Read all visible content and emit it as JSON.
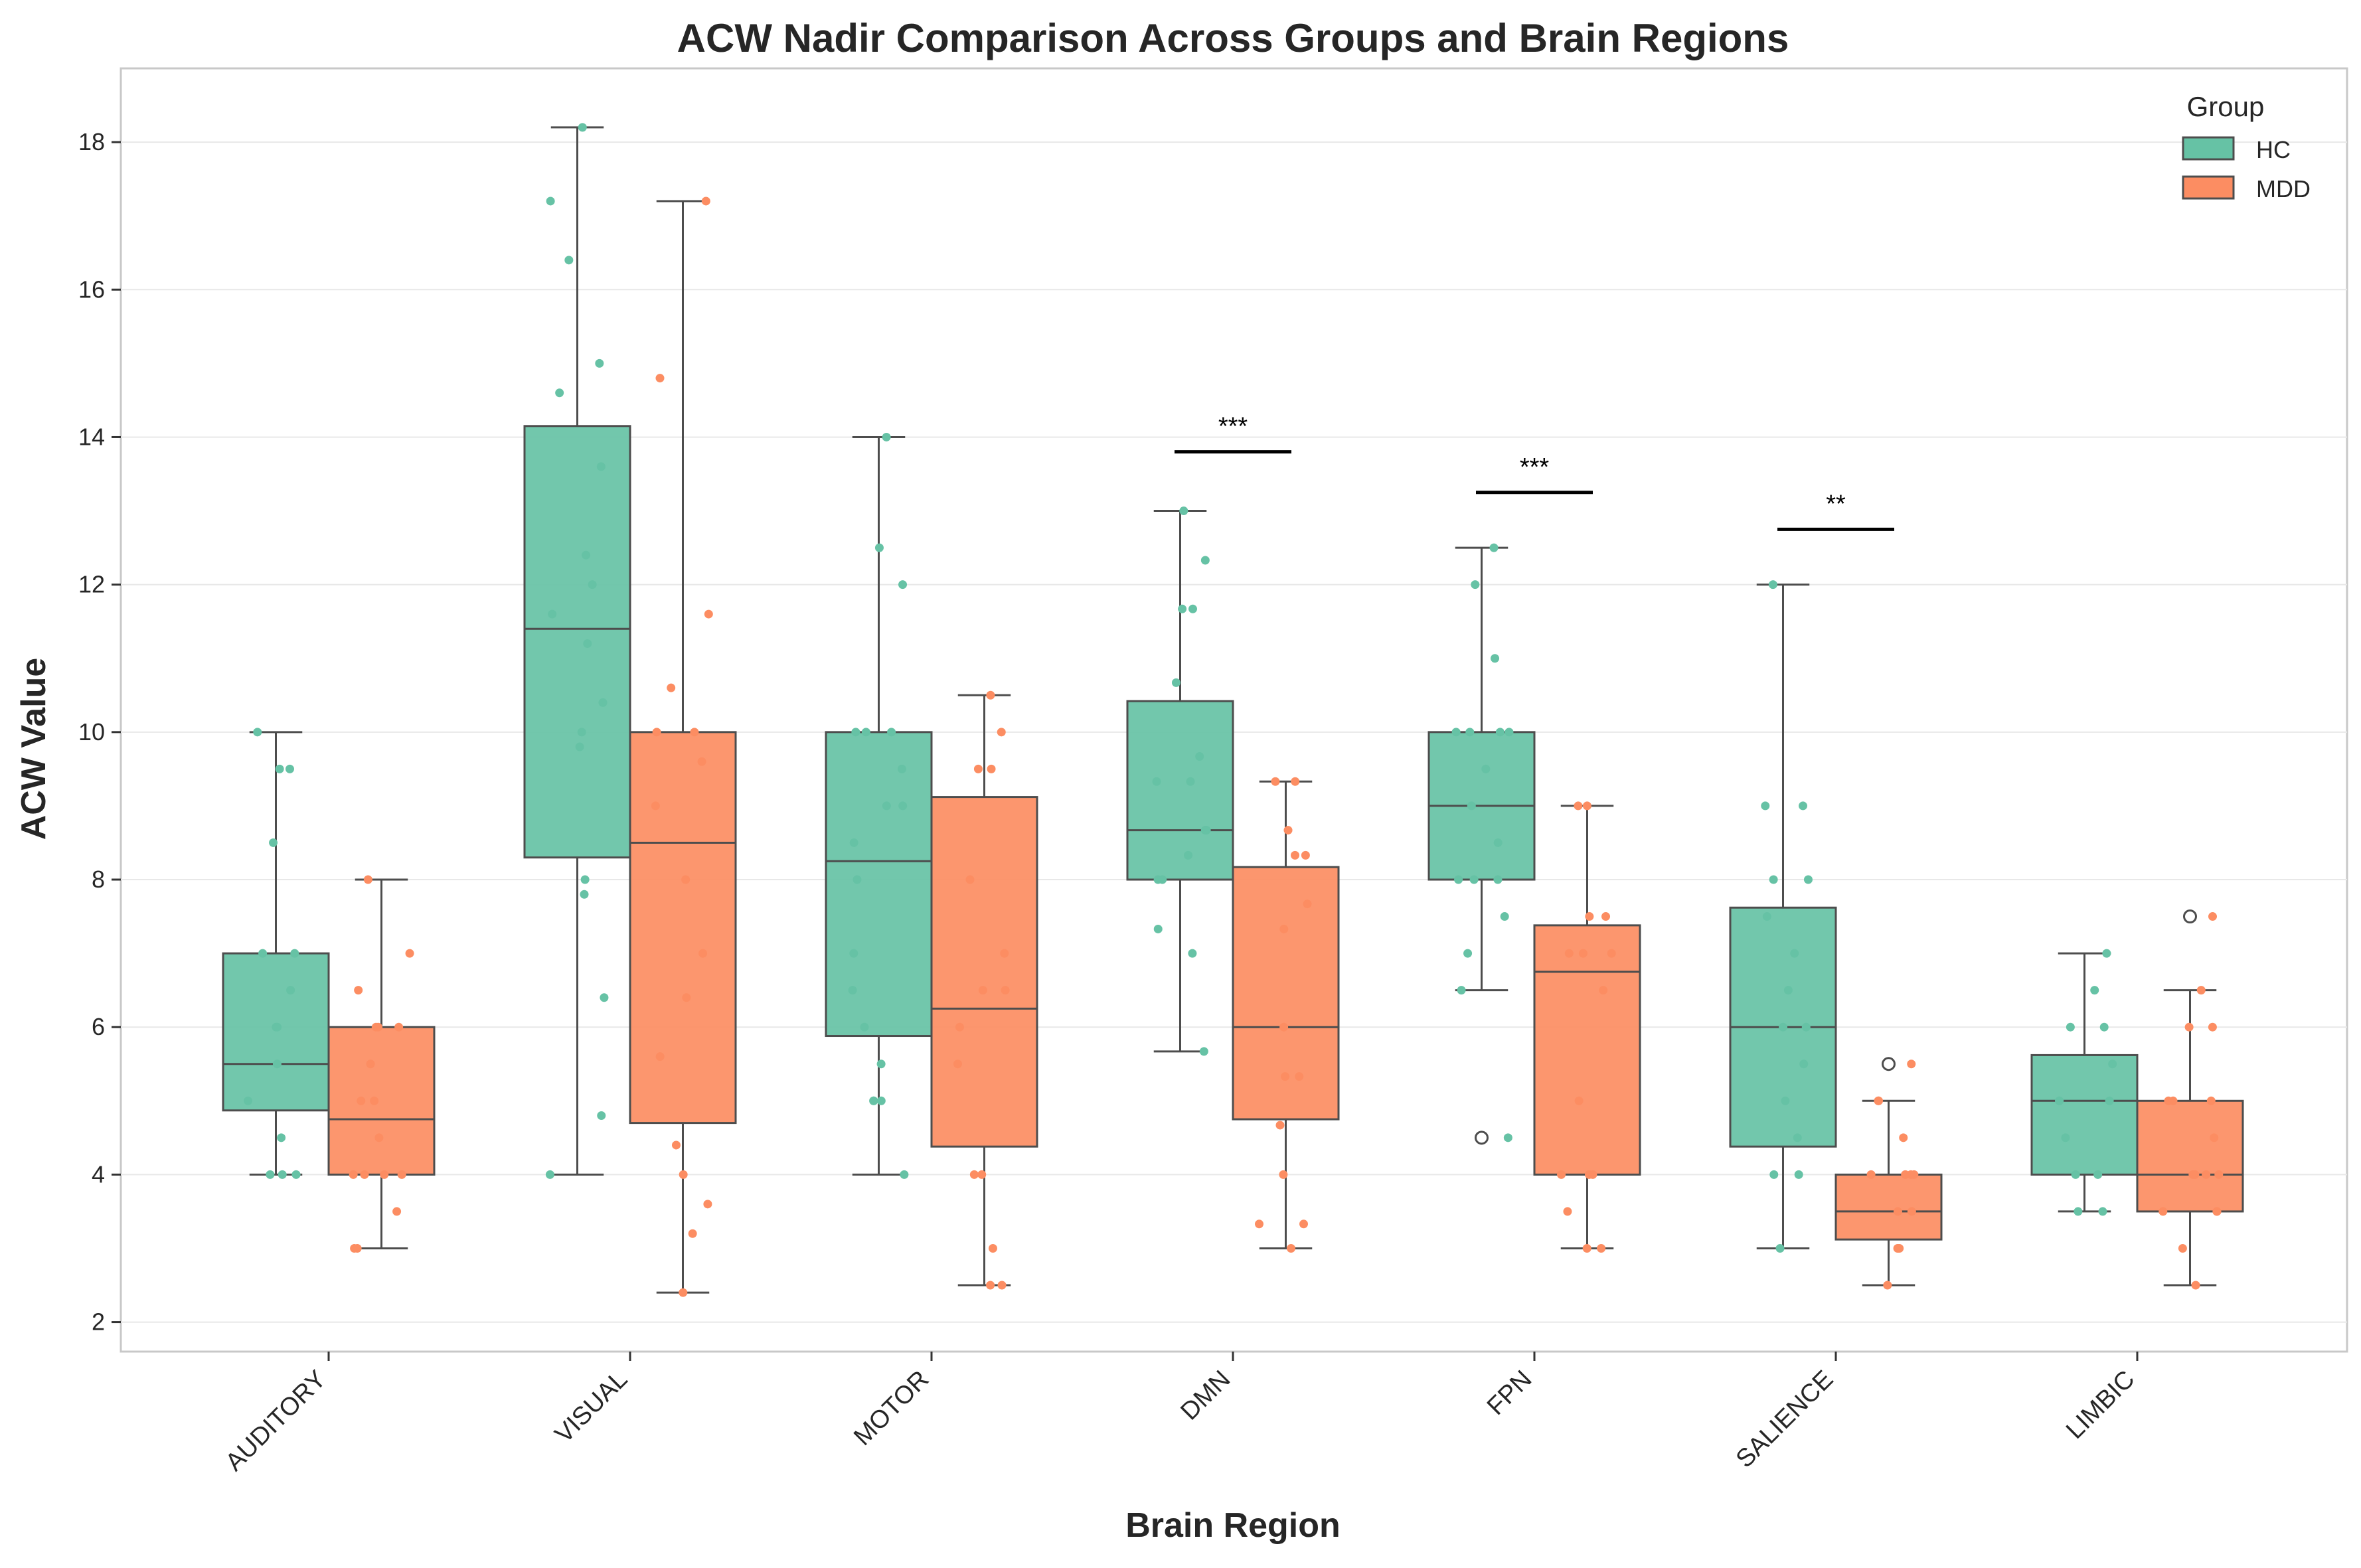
{
  "colors": {
    "HC": "#66c2a5",
    "MDD": "#fc8d62",
    "box_edge": "#4d4d4d",
    "grid": "#e8e8e8",
    "frame": "#c8c8c8",
    "sig": "#000000"
  },
  "chart_data": {
    "type": "box",
    "title": "ACW Nadir Comparison Across Groups and Brain Regions",
    "xlabel": "Brain Region",
    "ylabel": "ACW Value",
    "ylim": [
      1.6,
      19.0
    ],
    "yticks": [
      2,
      4,
      6,
      8,
      10,
      12,
      14,
      16,
      18
    ],
    "grid": "horizontal",
    "legend": {
      "title": "Group",
      "position": "top-right",
      "entries": [
        "HC",
        "MDD"
      ]
    },
    "categories": [
      "AUDITORY",
      "VISUAL",
      "MOTOR",
      "DMN",
      "FPN",
      "SALIENCE",
      "LIMBIC"
    ],
    "series": [
      {
        "name": "HC",
        "boxes": [
          {
            "wlo": 4.0,
            "q1": 4.87,
            "med": 5.5,
            "q3": 7.0,
            "whi": 10.0,
            "outliers": [],
            "points": [
              10.0,
              9.5,
              9.5,
              8.5,
              7.0,
              7.0,
              6.5,
              6.0,
              6.0,
              5.5,
              5.0,
              4.5,
              4.0,
              4.0,
              4.0
            ]
          },
          {
            "wlo": 4.0,
            "q1": 8.3,
            "med": 11.4,
            "q3": 14.15,
            "whi": 18.2,
            "outliers": [],
            "points": [
              18.2,
              17.2,
              16.4,
              15.0,
              14.6,
              13.6,
              12.4,
              12.0,
              11.6,
              11.2,
              10.4,
              10.0,
              9.8,
              8.0,
              7.8,
              6.4,
              4.8,
              4.0
            ]
          },
          {
            "wlo": 4.0,
            "q1": 5.88,
            "med": 8.25,
            "q3": 10.0,
            "whi": 14.0,
            "outliers": [],
            "points": [
              14.0,
              12.5,
              12.0,
              10.0,
              10.0,
              10.0,
              9.5,
              9.0,
              9.0,
              8.5,
              8.0,
              7.0,
              6.5,
              6.0,
              5.5,
              5.0,
              5.0,
              5.0,
              4.0
            ]
          },
          {
            "wlo": 5.67,
            "q1": 8.0,
            "med": 8.67,
            "q3": 10.42,
            "whi": 13.0,
            "outliers": [],
            "points": [
              13.0,
              12.33,
              11.67,
              11.67,
              10.67,
              9.67,
              9.33,
              9.33,
              8.67,
              8.67,
              8.33,
              8.0,
              8.0,
              7.33,
              7.0,
              5.67
            ]
          },
          {
            "wlo": 6.5,
            "q1": 8.0,
            "med": 9.0,
            "q3": 10.0,
            "whi": 12.5,
            "outliers": [
              4.5
            ],
            "points": [
              12.5,
              12.0,
              11.0,
              10.0,
              10.0,
              10.0,
              10.0,
              9.5,
              9.0,
              8.5,
              8.0,
              8.0,
              8.0,
              7.5,
              7.0,
              6.5,
              4.5
            ]
          },
          {
            "wlo": 3.0,
            "q1": 4.38,
            "med": 6.0,
            "q3": 7.62,
            "whi": 12.0,
            "outliers": [],
            "points": [
              12.0,
              9.0,
              9.0,
              8.0,
              8.0,
              7.5,
              7.0,
              6.5,
              6.0,
              6.0,
              5.5,
              5.0,
              4.5,
              4.0,
              4.0,
              3.0
            ]
          },
          {
            "wlo": 3.5,
            "q1": 4.0,
            "med": 5.0,
            "q3": 5.62,
            "whi": 7.0,
            "outliers": [],
            "points": [
              7.0,
              6.5,
              6.0,
              6.0,
              5.5,
              5.0,
              5.0,
              5.0,
              4.5,
              4.0,
              4.0,
              3.5,
              3.5
            ]
          }
        ]
      },
      {
        "name": "MDD",
        "boxes": [
          {
            "wlo": 3.0,
            "q1": 4.0,
            "med": 4.75,
            "q3": 6.0,
            "whi": 8.0,
            "outliers": [],
            "points": [
              8.0,
              7.0,
              6.5,
              6.0,
              6.0,
              6.0,
              5.5,
              5.0,
              5.0,
              4.5,
              4.0,
              4.0,
              4.0,
              4.0,
              3.5,
              3.0,
              3.0
            ]
          },
          {
            "wlo": 2.4,
            "q1": 4.7,
            "med": 8.5,
            "q3": 10.0,
            "whi": 17.2,
            "outliers": [],
            "points": [
              17.2,
              14.8,
              11.6,
              10.6,
              10.0,
              10.0,
              9.6,
              9.0,
              8.0,
              7.0,
              6.4,
              5.6,
              4.4,
              4.0,
              3.6,
              3.2,
              2.4
            ]
          },
          {
            "wlo": 2.5,
            "q1": 4.38,
            "med": 6.25,
            "q3": 9.12,
            "whi": 10.5,
            "outliers": [],
            "points": [
              10.5,
              10.0,
              9.5,
              9.5,
              8.0,
              7.0,
              6.5,
              6.5,
              6.0,
              5.5,
              4.0,
              4.0,
              3.0,
              2.5,
              2.5
            ]
          },
          {
            "wlo": 3.0,
            "q1": 4.75,
            "med": 6.0,
            "q3": 8.17,
            "whi": 9.33,
            "outliers": [],
            "points": [
              9.33,
              9.33,
              8.67,
              8.33,
              8.33,
              7.67,
              7.33,
              6.0,
              5.33,
              5.33,
              4.67,
              4.0,
              3.33,
              3.33,
              3.0
            ]
          },
          {
            "wlo": 3.0,
            "q1": 4.0,
            "med": 6.75,
            "q3": 7.38,
            "whi": 9.0,
            "outliers": [],
            "points": [
              9.0,
              9.0,
              7.5,
              7.5,
              7.0,
              7.0,
              7.0,
              6.5,
              5.0,
              4.0,
              4.0,
              4.0,
              3.5,
              3.0,
              3.0
            ]
          },
          {
            "wlo": 2.5,
            "q1": 3.12,
            "med": 3.5,
            "q3": 4.0,
            "whi": 5.0,
            "outliers": [
              5.5
            ],
            "points": [
              5.5,
              5.0,
              5.0,
              4.5,
              4.0,
              4.0,
              4.0,
              4.0,
              3.5,
              3.5,
              3.0,
              3.0,
              3.0,
              2.5
            ]
          },
          {
            "wlo": 2.5,
            "q1": 3.5,
            "med": 4.0,
            "q3": 5.0,
            "whi": 6.5,
            "outliers": [
              7.5
            ],
            "points": [
              7.5,
              6.5,
              6.0,
              6.0,
              5.0,
              5.0,
              5.0,
              4.5,
              4.0,
              4.0,
              4.0,
              4.0,
              3.5,
              3.5,
              3.5,
              3.0,
              2.5
            ]
          }
        ]
      }
    ],
    "annotations": [
      {
        "category": "DMN",
        "text": "***",
        "y": 13.8
      },
      {
        "category": "FPN",
        "text": "***",
        "y": 13.25
      },
      {
        "category": "SALIENCE",
        "text": "**",
        "y": 12.75
      }
    ]
  }
}
